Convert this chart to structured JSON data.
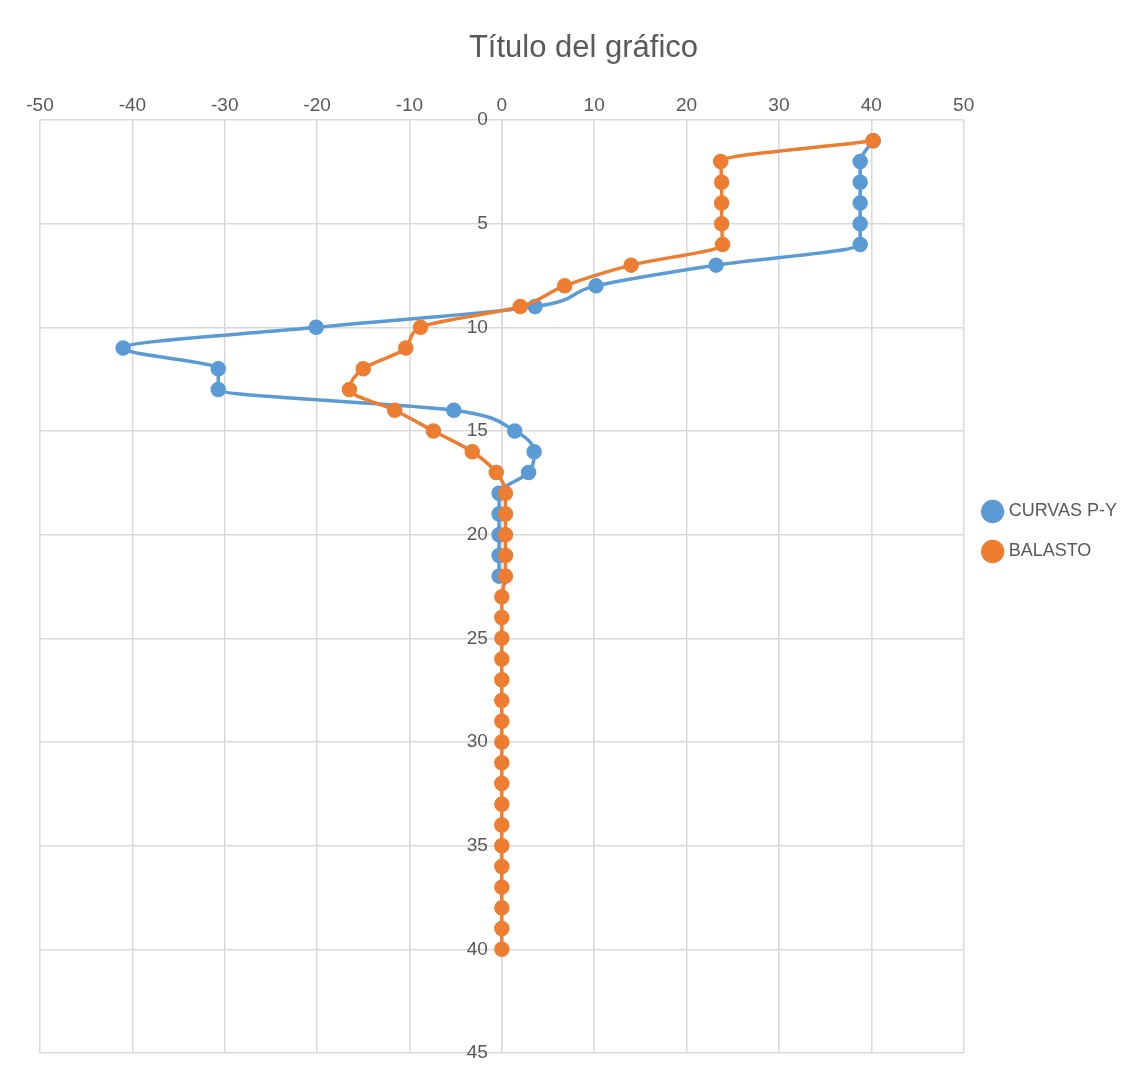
{
  "chart_data": {
    "type": "line",
    "title": "Título del gráfico",
    "series": [
      {
        "name": "CURVAS P-Y",
        "color": "#5b9bd5",
        "x": [
          40.2,
          38.8,
          38.8,
          38.8,
          38.8,
          38.8,
          23.2,
          10.2,
          3.6,
          -20.1,
          -41,
          -30.7,
          -30.7,
          -5.2,
          1.4,
          3.5,
          2.9,
          -0.3,
          -0.3,
          -0.3,
          -0.3,
          -0.3
        ],
        "values": [
          1,
          2,
          3,
          4,
          5,
          6,
          7,
          8,
          9,
          10,
          11,
          12,
          13,
          14,
          15,
          16,
          17,
          18,
          19,
          20,
          21,
          22
        ]
      },
      {
        "name": "BALASTO",
        "color": "#ed7d31",
        "x": [
          40.2,
          23.7,
          23.8,
          23.8,
          23.8,
          23.9,
          14,
          6.8,
          2,
          -8.8,
          -10.4,
          -15,
          -16.5,
          -11.6,
          -7.4,
          -3.2,
          -0.6,
          0.4,
          0.4,
          0.4,
          0.4,
          0.4,
          0,
          0,
          0,
          0,
          0,
          0,
          0,
          0,
          0,
          0,
          0,
          0,
          0,
          0,
          0,
          0,
          0,
          0
        ],
        "values": [
          1,
          2,
          3,
          4,
          5,
          6,
          7,
          8,
          9,
          10,
          11,
          12,
          13,
          14,
          15,
          16,
          17,
          18,
          19,
          20,
          21,
          22,
          23,
          24,
          25,
          26,
          27,
          28,
          29,
          30,
          31,
          32,
          33,
          34,
          35,
          36,
          37,
          38,
          39,
          40
        ]
      }
    ],
    "xlim": [
      -50,
      50
    ],
    "xticks": [
      -50,
      -40,
      -30,
      -20,
      -10,
      0,
      10,
      20,
      30,
      40,
      50
    ],
    "ylim": [
      45,
      0
    ],
    "yticks": [
      0,
      5,
      10,
      15,
      20,
      25,
      30,
      35,
      40,
      45
    ],
    "grid": true,
    "legend": "right",
    "marker": "circle",
    "line_style": "solid"
  }
}
